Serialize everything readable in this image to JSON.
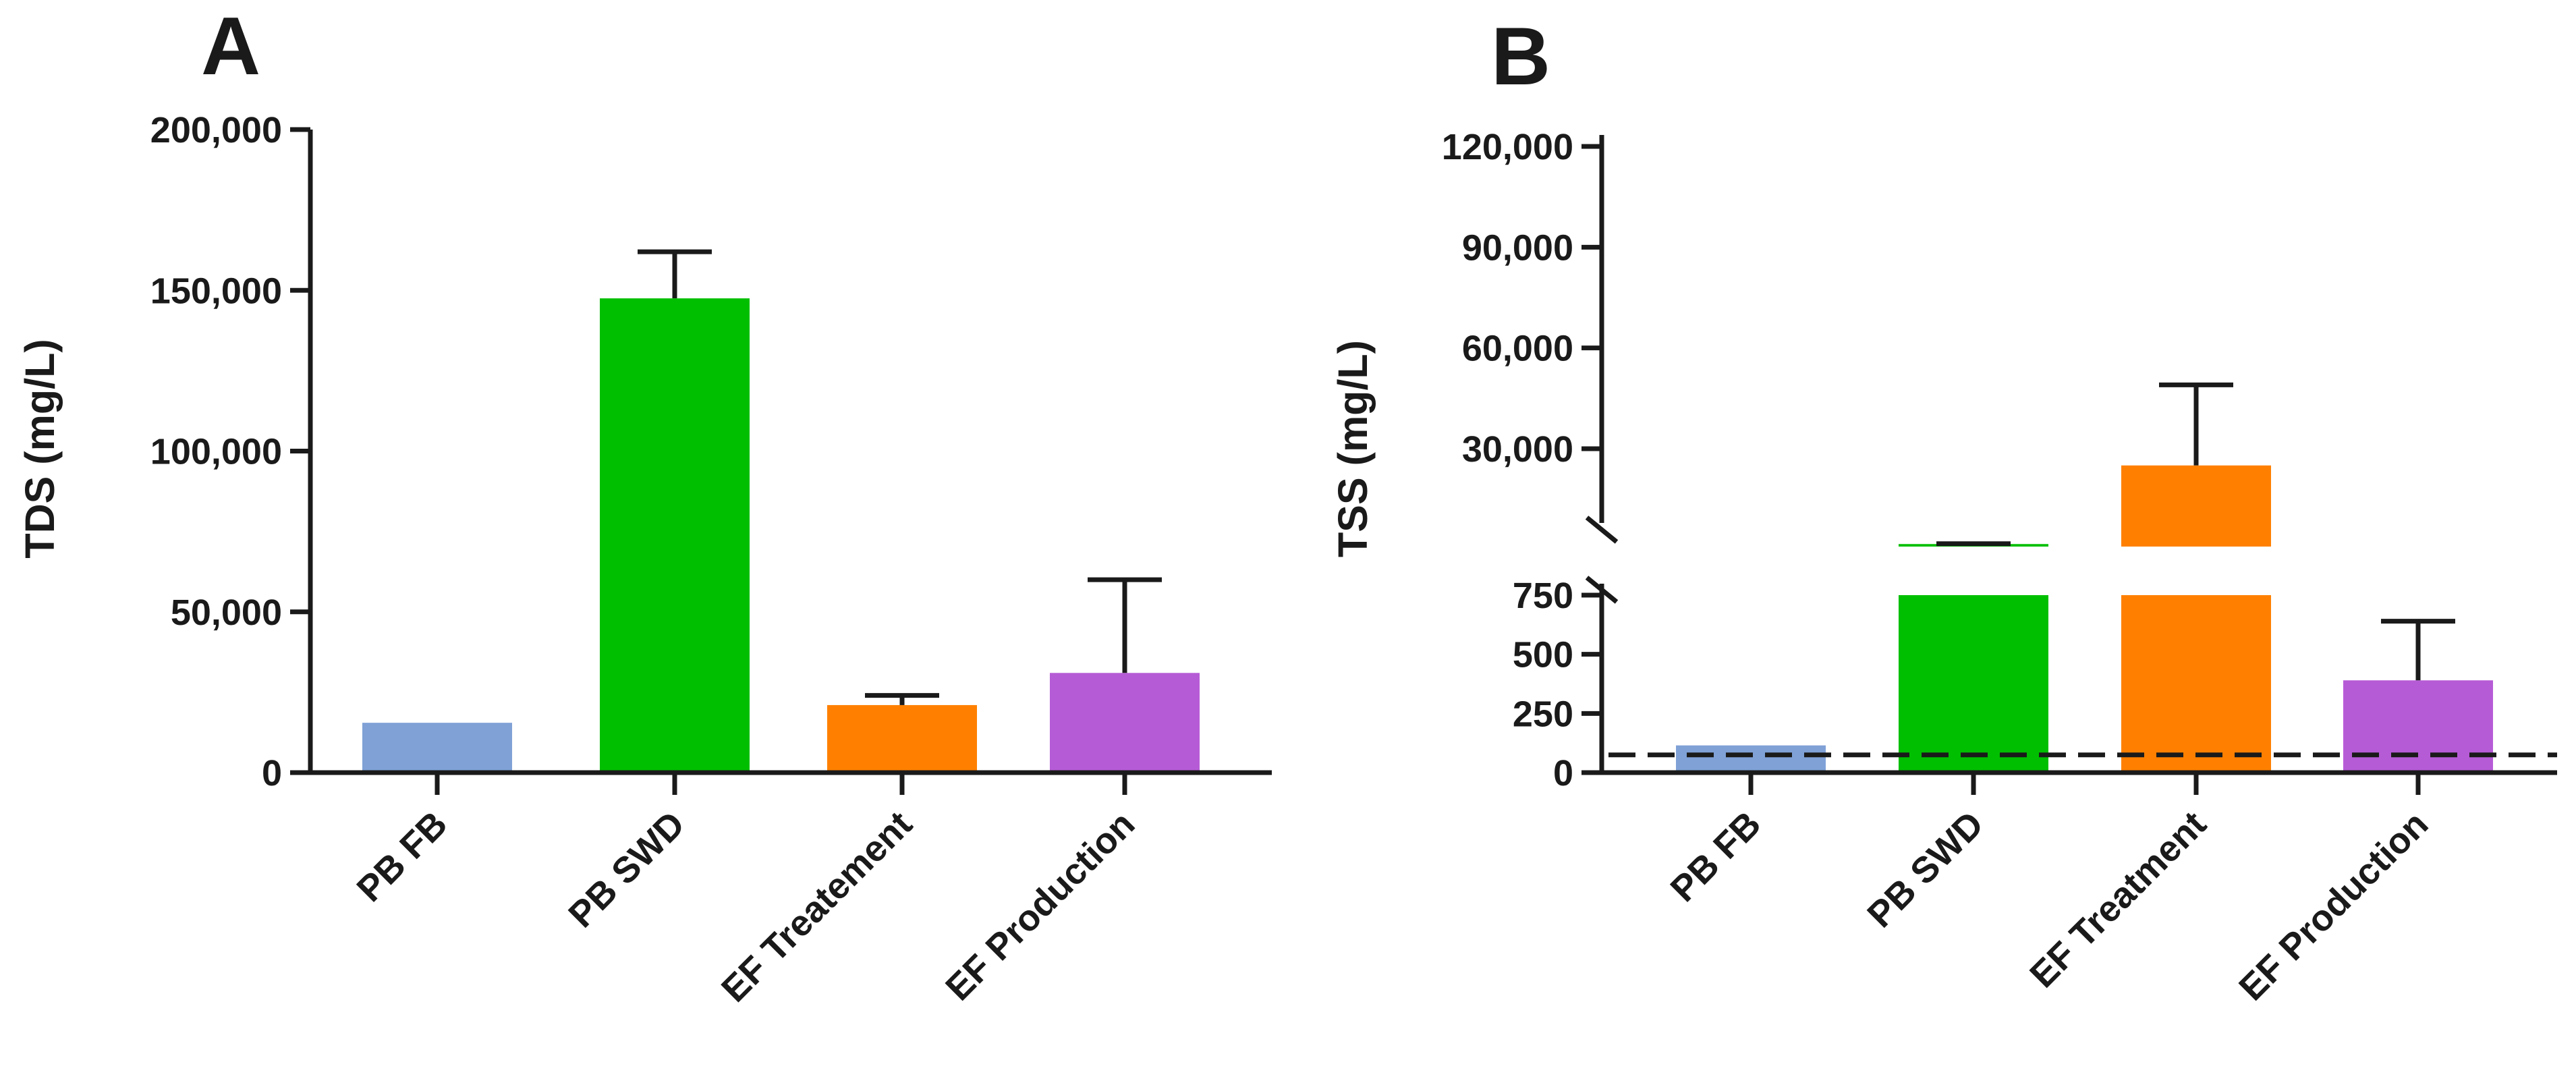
{
  "chart_data": [
    {
      "panel_label": "A",
      "type": "bar",
      "categories": [
        "PB FB",
        "PB  SWD",
        "EF Treatement",
        "EF Production"
      ],
      "values": [
        15500,
        147500,
        21000,
        31000
      ],
      "error_upper": [
        15500,
        162000,
        24000,
        60000
      ],
      "colors": [
        "#7fa1d6",
        "#00bf00",
        "#ff8000",
        "#b65bd6"
      ],
      "title": "",
      "xlabel": "",
      "ylabel": "TDS (mg/L)",
      "ylim": [
        0,
        200000
      ],
      "yticks": [
        0,
        50000,
        100000,
        150000,
        200000
      ],
      "ytick_labels": [
        "0",
        "50,000",
        "100,000",
        "150,000",
        "200,000"
      ],
      "grid": false
    },
    {
      "panel_label": "B",
      "type": "bar",
      "categories": [
        "PB FB",
        "PB SWD",
        "EF Treatment",
        "EF Production"
      ],
      "values": [
        115,
        1500,
        25000,
        390
      ],
      "error_upper": [
        115,
        1600,
        49000,
        640
      ],
      "colors": [
        "#7fa1d6",
        "#00bf00",
        "#ff8000",
        "#b65bd6"
      ],
      "title": "",
      "xlabel": "",
      "ylabel": "TSS (mg/L)",
      "broken_axis": {
        "lower_range": [
          0,
          750
        ],
        "upper_range": [
          0,
          120000
        ],
        "lower_ticks": [
          0,
          250,
          500,
          750
        ],
        "lower_tick_labels": [
          "0",
          "250",
          "500",
          "750"
        ],
        "upper_ticks": [
          30000,
          60000,
          90000,
          120000
        ],
        "upper_tick_labels": [
          "30,000",
          "60,000",
          "90,000",
          "120,000"
        ]
      },
      "reference_line": {
        "value": 75,
        "style": "dashed"
      },
      "grid": false
    }
  ]
}
